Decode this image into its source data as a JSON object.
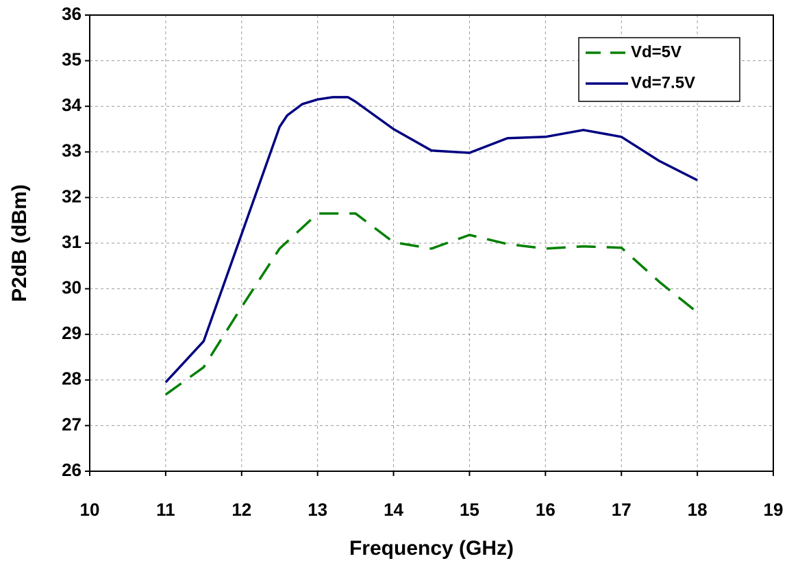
{
  "chart_data": {
    "type": "line",
    "x_label": "Frequency (GHz)",
    "y_label": "P2dB (dBm)",
    "xlim": [
      10,
      19
    ],
    "ylim": [
      26,
      36
    ],
    "xticks": [
      10,
      11,
      12,
      13,
      14,
      15,
      16,
      17,
      18,
      19
    ],
    "yticks": [
      26,
      27,
      28,
      29,
      30,
      31,
      32,
      33,
      34,
      35,
      36
    ],
    "grid": true,
    "legend": "upper right",
    "series": [
      {
        "name": "Vd=5V",
        "color": "#008000",
        "dashed": true,
        "x": [
          11,
          11.5,
          12,
          12.5,
          13,
          13.5,
          14,
          14.5,
          15,
          15.5,
          16,
          16.5,
          17,
          17.5,
          18
        ],
        "values": [
          27.68,
          28.28,
          29.6,
          30.88,
          31.65,
          31.65,
          31.02,
          30.88,
          31.18,
          30.98,
          30.88,
          30.93,
          30.9,
          30.15,
          29.48
        ]
      },
      {
        "name": "Vd=7.5V",
        "color": "#000080",
        "dashed": false,
        "x": [
          11,
          11.5,
          12,
          12.5,
          12.6,
          12.8,
          13,
          13.2,
          13.4,
          13.5,
          14,
          14.5,
          15,
          15.5,
          16,
          16.5,
          17,
          17.5,
          18
        ],
        "values": [
          27.95,
          28.85,
          31.2,
          33.55,
          33.8,
          34.05,
          34.15,
          34.2,
          34.2,
          34.1,
          33.5,
          33.03,
          32.98,
          33.3,
          33.33,
          33.48,
          33.33,
          32.8,
          32.38
        ]
      }
    ]
  }
}
